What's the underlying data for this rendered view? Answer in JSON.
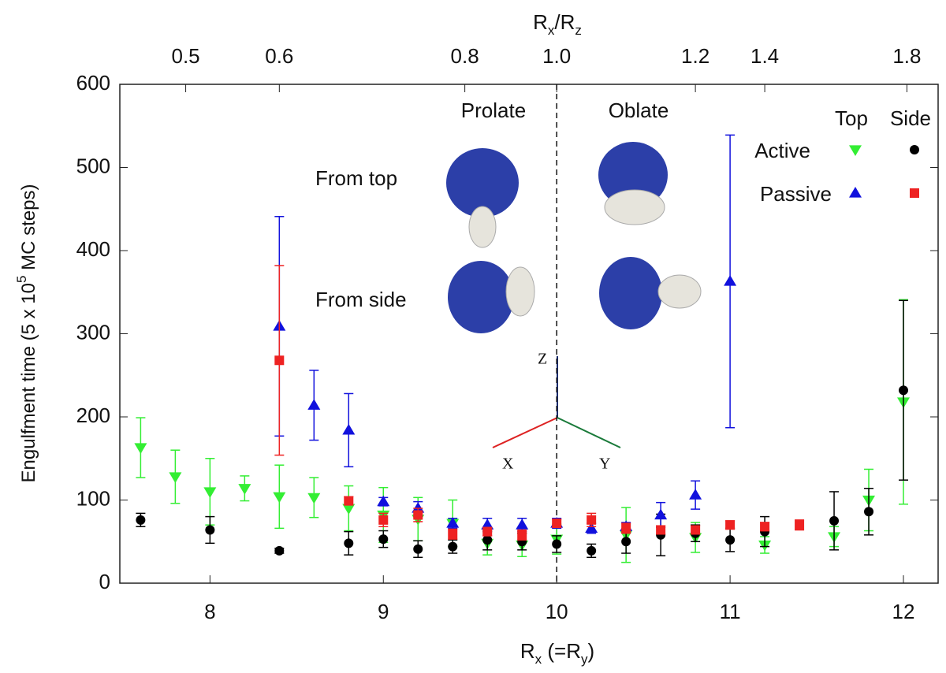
{
  "chart_data": {
    "type": "scatter",
    "xlabel": [
      "R",
      "x",
      " (=R",
      "y",
      ")"
    ],
    "ylabel": [
      "Engulfment time (5 x 10",
      "5",
      " MC steps)"
    ],
    "x2label": [
      "R",
      "x",
      "/R",
      "z"
    ],
    "xlim": [
      7.48,
      12.2
    ],
    "ylim": [
      0,
      600
    ],
    "xticks": [
      8,
      9,
      10,
      11,
      12
    ],
    "yticks": [
      0,
      100,
      200,
      300,
      400,
      500,
      600
    ],
    "x2ticks": [
      {
        "value": 7.86,
        "label": "0.5"
      },
      {
        "value": 8.4,
        "label": "0.6"
      },
      {
        "value": 9.47,
        "label": "0.8"
      },
      {
        "value": 10,
        "label": "1.0"
      },
      {
        "value": 10.8,
        "label": "1.2"
      },
      {
        "value": 11.2,
        "label": "1.4"
      },
      {
        "value": 12.02,
        "label": "1.8"
      }
    ],
    "vline": 10,
    "annotations": [
      "Prolate",
      "Oblate",
      "From top",
      "From side"
    ],
    "axes_triad": [
      "Z",
      "X",
      "Y"
    ],
    "series": [
      {
        "name": "Active",
        "view": "Top",
        "marker": "triangle-down",
        "color": "#33ee33",
        "x": [
          7.6,
          7.8,
          8.0,
          8.2,
          8.4,
          8.6,
          8.8,
          9.0,
          9.2,
          9.4,
          9.6,
          9.8,
          10.0,
          10.4,
          10.8,
          11.2,
          11.6,
          11.8,
          12.0
        ],
        "values": [
          163,
          128,
          110,
          114,
          104,
          103,
          90,
          82,
          77,
          72,
          48,
          46,
          53,
          58,
          55,
          46,
          56,
          100,
          218
        ],
        "errors": [
          36,
          32,
          40,
          15,
          38,
          24,
          27,
          33,
          26,
          28,
          14,
          14,
          18,
          33,
          18,
          10,
          12,
          37,
          123
        ]
      },
      {
        "name": "Active",
        "view": "Side",
        "marker": "circle",
        "color": "#000000",
        "x": [
          7.6,
          8.0,
          8.4,
          8.8,
          9.0,
          9.2,
          9.4,
          9.6,
          9.8,
          10.0,
          10.2,
          10.4,
          10.6,
          10.8,
          11.0,
          11.2,
          11.6,
          11.8,
          12.0
        ],
        "values": [
          76,
          64,
          39,
          48,
          53,
          41,
          44,
          52,
          50,
          47,
          39,
          50,
          58,
          60,
          52,
          62,
          75,
          86,
          232
        ],
        "errors": [
          8,
          16,
          3,
          14,
          10,
          10,
          8,
          12,
          10,
          10,
          8,
          14,
          25,
          10,
          14,
          18,
          35,
          28,
          108
        ]
      },
      {
        "name": "Passive",
        "view": "Top",
        "marker": "triangle-up",
        "color": "#1111dd",
        "x": [
          8.4,
          8.6,
          8.8,
          9.0,
          9.2,
          9.4,
          9.6,
          9.8,
          10.0,
          10.2,
          10.4,
          10.6,
          10.8,
          11.0
        ],
        "values": [
          309,
          214,
          184,
          98,
          90,
          72,
          70,
          70,
          72,
          66,
          68,
          82,
          106,
          363
        ],
        "errors": [
          132,
          42,
          44,
          5,
          8,
          6,
          8,
          8,
          6,
          6,
          5,
          15,
          17,
          176
        ]
      },
      {
        "name": "Passive",
        "view": "Side",
        "marker": "square",
        "color": "#ee2222",
        "x": [
          8.4,
          8.8,
          9.0,
          9.2,
          9.4,
          9.6,
          9.8,
          10.0,
          10.2,
          10.4,
          10.6,
          10.8,
          11.0,
          11.2,
          11.4
        ],
        "values": [
          268,
          99,
          76,
          82,
          59,
          62,
          58,
          72,
          76,
          66,
          64,
          64,
          70,
          68,
          70
        ],
        "errors": [
          114,
          5,
          8,
          8,
          6,
          5,
          6,
          5,
          8,
          6,
          5,
          5,
          5,
          5,
          6
        ]
      }
    ]
  }
}
